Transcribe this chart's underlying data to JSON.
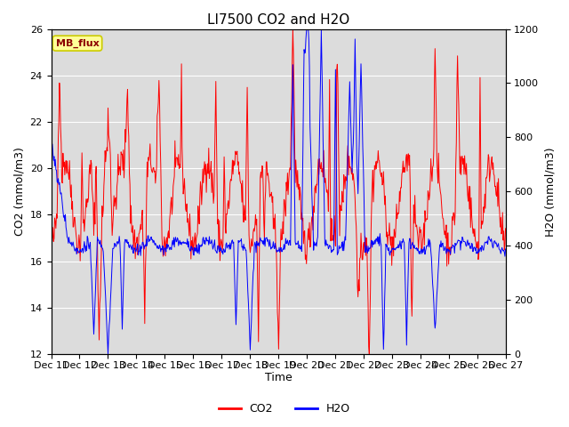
{
  "title": "LI7500 CO2 and H2O",
  "xlabel": "Time",
  "ylabel_left": "CO2 (mmol/m3)",
  "ylabel_right": "H2O (mmol/m3)",
  "ylim_left": [
    12,
    26
  ],
  "ylim_right": [
    0,
    1200
  ],
  "yticks_left": [
    12,
    14,
    16,
    18,
    20,
    22,
    24,
    26
  ],
  "yticks_right": [
    0,
    200,
    400,
    600,
    800,
    1000,
    1200
  ],
  "co2_color": "#FF0000",
  "h2o_color": "#0000FF",
  "annotation_text": "MB_flux",
  "annotation_bg": "#FFFF99",
  "annotation_border": "#CCCC00",
  "background_color": "#DCDCDC",
  "grid_color": "#FFFFFF",
  "title_fontsize": 11,
  "axis_fontsize": 9,
  "tick_fontsize": 8,
  "legend_fontsize": 9,
  "linewidth": 0.7
}
